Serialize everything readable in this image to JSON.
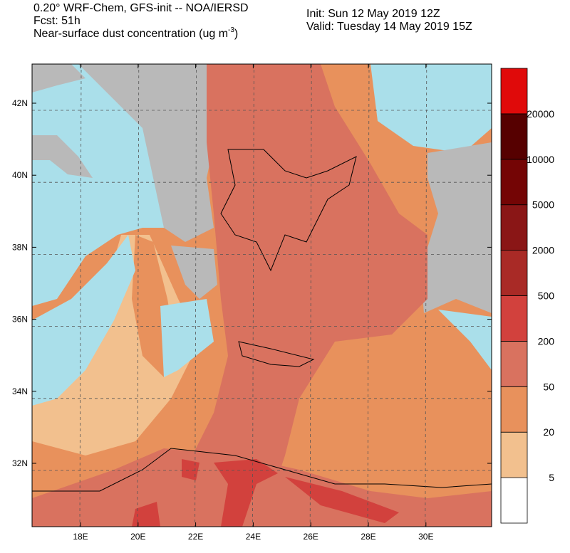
{
  "header": {
    "title": "0.20° WRF-Chem, GFS-init -- NOA/IERSD",
    "forecast": "Fcst: 51h",
    "field": "Near-surface dust concentration (ug m",
    "field_sup": "-3",
    "field_end": ")",
    "init": "Init: Sun 12 May 2019  12Z",
    "valid": "Valid: Tuesday 14 May 2019  15Z"
  },
  "map": {
    "lon_labels": [
      "18E",
      "20E",
      "22E",
      "24E",
      "26E",
      "28E",
      "30E"
    ],
    "lat_labels": [
      "42N",
      "40N",
      "38N",
      "36N",
      "34N",
      "32N"
    ]
  },
  "colorbar": {
    "levels": [
      5,
      20,
      50,
      200,
      500,
      2000,
      5000,
      10000,
      20000
    ],
    "colors": [
      "#ffffff",
      "#f2c08e",
      "#e8915c",
      "#d9725f",
      "#d2413d",
      "#a92a26",
      "#8a1616",
      "#740505",
      "#560000",
      "#e00a0a"
    ]
  }
}
